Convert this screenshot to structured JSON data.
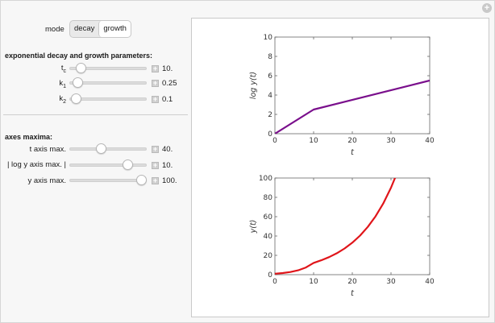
{
  "controls": {
    "mode": {
      "label": "mode",
      "options": [
        "decay",
        "growth"
      ],
      "selected": "growth"
    },
    "section1_title": "exponential decay and growth parameters:",
    "params": [
      {
        "label": "t",
        "sub": "c",
        "value": 10,
        "value_text": "10.",
        "min": 0,
        "max": 100
      },
      {
        "label": "k",
        "sub": "1",
        "value": 0.25,
        "value_text": "0.25",
        "min": 0,
        "max": 5
      },
      {
        "label": "k",
        "sub": "2",
        "value": 0.1,
        "value_text": "0.1",
        "min": 0,
        "max": 5
      }
    ],
    "section2_title": "axes maxima:",
    "axes": [
      {
        "label": "t axis max.",
        "value": 40,
        "value_text": "40.",
        "min": 0,
        "max": 100
      },
      {
        "label": "| log y axis max. |",
        "value": 10,
        "value_text": "10.",
        "min": 0,
        "max": 12.5
      },
      {
        "label": "y axis max.",
        "value": 100,
        "value_text": "100.",
        "min": 0,
        "max": 100
      }
    ],
    "plus_glyph": "+"
  },
  "chart_data": [
    {
      "type": "line",
      "xlabel": "t",
      "ylabel": "log y(t)",
      "xlim": [
        0,
        40
      ],
      "ylim": [
        0,
        10
      ],
      "xticks": [
        0,
        10,
        20,
        30,
        40
      ],
      "yticks": [
        0,
        2,
        4,
        6,
        8,
        10
      ],
      "color": "#7a0f8c",
      "series": [
        {
          "x": [
            0,
            10,
            40
          ],
          "y": [
            0,
            2.5,
            5.5
          ]
        }
      ]
    },
    {
      "type": "line",
      "xlabel": "t",
      "ylabel": "y(t)",
      "xlim": [
        0,
        40
      ],
      "ylim": [
        0,
        100
      ],
      "xticks": [
        0,
        10,
        20,
        30,
        40
      ],
      "yticks": [
        0,
        20,
        40,
        60,
        80,
        100
      ],
      "color": "#e0151a",
      "series": [
        {
          "x": [
            0,
            2,
            4,
            6,
            8,
            10,
            12,
            14,
            16,
            18,
            20,
            22,
            24,
            26,
            28,
            30,
            31.5
          ],
          "y": [
            1,
            1.65,
            2.72,
            4.48,
            7.39,
            12.18,
            14.88,
            18.17,
            22.2,
            27.11,
            33.12,
            40.45,
            49.4,
            60.34,
            73.7,
            90.02,
            104.6
          ]
        }
      ]
    }
  ]
}
